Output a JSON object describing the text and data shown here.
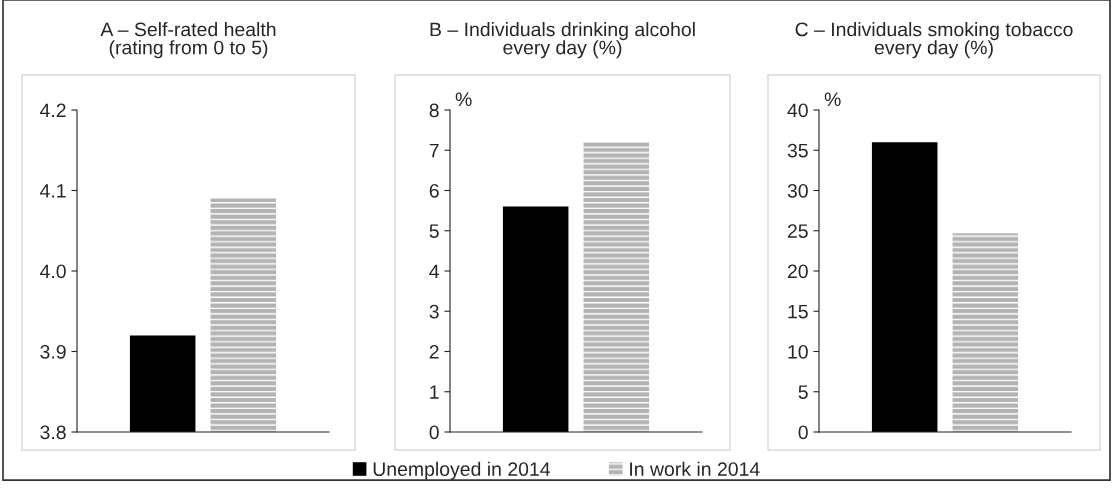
{
  "chart_data": [
    {
      "type": "bar",
      "title": "A – Self-rated health\n(rating from 0 to 5)",
      "categories": [
        null
      ],
      "series": [
        {
          "name": "Unemployed in 2014",
          "color": "#000000",
          "values": [
            3.92
          ]
        },
        {
          "name": "In work in 2014",
          "color": "#b3b3b3",
          "values": [
            4.09
          ]
        }
      ],
      "ylim": [
        3.8,
        4.2
      ],
      "yticks": [
        3.8,
        3.9,
        {
          "value": 4.0,
          "label": "4.0"
        },
        4.1,
        4.2
      ],
      "grid": false,
      "legend": "bottom"
    },
    {
      "type": "bar",
      "title": "B – Individuals drinking alcohol\nevery day (%)",
      "ylabel": "%",
      "categories": [
        null
      ],
      "series": [
        {
          "color": "#000000",
          "values": [
            5.6
          ]
        },
        {
          "color": "#b3b3b3",
          "values": [
            7.2
          ]
        }
      ],
      "ylim": [
        0,
        8
      ],
      "yticks": [
        0,
        1,
        2,
        3,
        4,
        5,
        6,
        7,
        8
      ],
      "grid": false
    },
    {
      "type": "bar",
      "title": "C – Individuals smoking tobacco\nevery day (%)",
      "ylabel": "%",
      "categories": [
        null
      ],
      "series": [
        {
          "color": "#000000",
          "values": [
            36
          ]
        },
        {
          "color": "#b3b3b3",
          "values": [
            24.7
          ]
        }
      ],
      "ylim": [
        0,
        40
      ],
      "yticks": [
        0,
        5,
        10,
        15,
        20,
        25,
        30,
        35,
        40
      ],
      "grid": false
    }
  ]
}
